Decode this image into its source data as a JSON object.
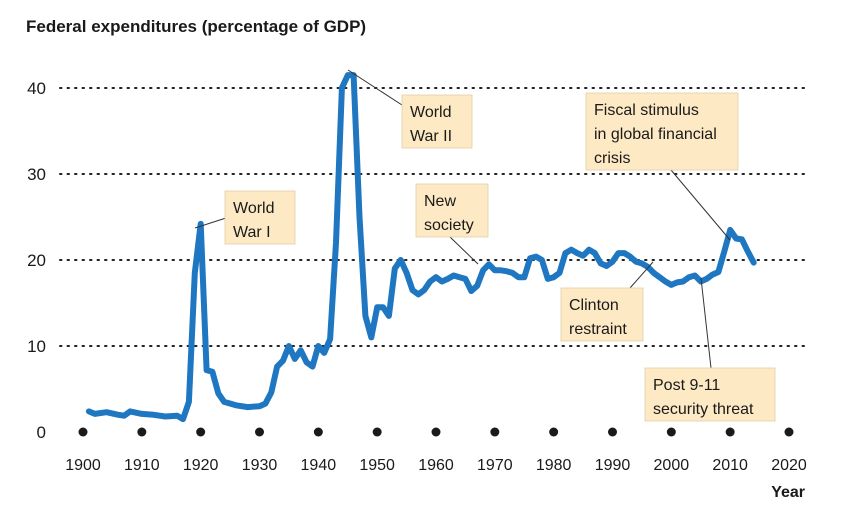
{
  "chart_data": {
    "type": "line",
    "title": "Federal expenditures (percentage of GDP)",
    "xlabel": "Year",
    "ylabel": "",
    "xlim": [
      1900,
      2020
    ],
    "ylim": [
      0,
      40
    ],
    "xticks": [
      1900,
      1910,
      1920,
      1930,
      1940,
      1950,
      1960,
      1970,
      1980,
      1990,
      2000,
      2010,
      2020
    ],
    "yticks": [
      0,
      10,
      20,
      30,
      40
    ],
    "grid": "horizontal dotted",
    "color": "#1f77c1",
    "series": [
      {
        "name": "",
        "x": [
          1901,
          1902,
          1904,
          1906,
          1907,
          1908,
          1910,
          1912,
          1914,
          1916,
          1917,
          1918,
          1919,
          1920,
          1921,
          1922,
          1923,
          1924,
          1926,
          1928,
          1930,
          1931,
          1932,
          1933,
          1934,
          1935,
          1936,
          1937,
          1938,
          1939,
          1940,
          1941,
          1942,
          1943,
          1944,
          1945,
          1946,
          1947,
          1948,
          1949,
          1950,
          1951,
          1952,
          1953,
          1954,
          1955,
          1956,
          1957,
          1958,
          1959,
          1960,
          1961,
          1962,
          1963,
          1964,
          1965,
          1966,
          1967,
          1968,
          1969,
          1970,
          1971,
          1972,
          1973,
          1974,
          1975,
          1976,
          1977,
          1978,
          1979,
          1980,
          1981,
          1982,
          1983,
          1984,
          1985,
          1986,
          1987,
          1988,
          1989,
          1990,
          1991,
          1992,
          1993,
          1994,
          1995,
          1996,
          1997,
          1998,
          1999,
          2000,
          2001,
          2002,
          2003,
          2004,
          2005,
          2006,
          2007,
          2008,
          2009,
          2010,
          2011,
          2012,
          2013,
          2014
        ],
        "values": [
          2.4,
          2.1,
          2.3,
          2.0,
          1.9,
          2.4,
          2.1,
          2.0,
          1.8,
          1.9,
          1.5,
          3.5,
          18.5,
          24.2,
          7.2,
          7.0,
          4.5,
          3.5,
          3.1,
          2.9,
          3.0,
          3.3,
          4.6,
          7.6,
          8.3,
          10.0,
          8.5,
          9.5,
          8.1,
          7.6,
          10.0,
          9.2,
          10.8,
          22.0,
          40.0,
          41.5,
          41.5,
          25.0,
          13.5,
          11.0,
          14.5,
          14.5,
          13.5,
          19.0,
          20.0,
          18.5,
          16.5,
          16.0,
          16.5,
          17.5,
          18.0,
          17.5,
          17.8,
          18.2,
          18.0,
          17.8,
          16.4,
          17.0,
          18.8,
          19.5,
          18.8,
          18.8,
          18.7,
          18.5,
          18.0,
          18.0,
          20.2,
          20.4,
          20.0,
          17.8,
          18.0,
          18.5,
          20.8,
          21.2,
          20.8,
          20.5,
          21.2,
          20.8,
          19.6,
          19.3,
          19.8,
          20.8,
          20.8,
          20.4,
          19.8,
          19.6,
          19.2,
          18.5,
          18.0,
          17.5,
          17.1,
          17.4,
          17.5,
          18.0,
          18.2,
          17.5,
          17.8,
          18.3,
          18.6,
          21.0,
          23.5,
          22.5,
          22.4,
          21.0,
          19.7
        ]
      }
    ],
    "annotations": [
      {
        "lines": [
          "World",
          "War I"
        ]
      },
      {
        "lines": [
          "World",
          "War II"
        ]
      },
      {
        "lines": [
          "New",
          "society"
        ]
      },
      {
        "lines": [
          "Fiscal stimulus",
          "in global financial",
          "crisis"
        ]
      },
      {
        "lines": [
          "Clinton",
          "restraint"
        ]
      },
      {
        "lines": [
          "Post 9-11",
          "security threat"
        ]
      }
    ]
  }
}
